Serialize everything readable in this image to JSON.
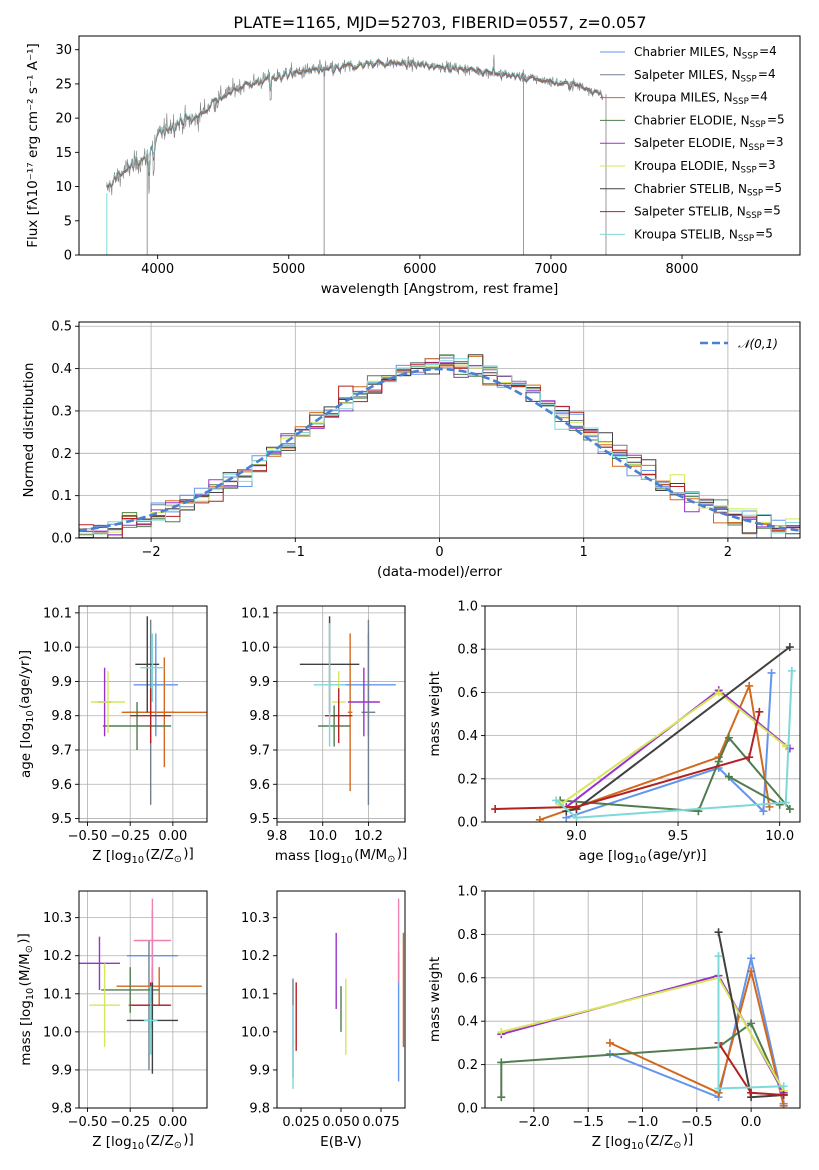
{
  "figure": {
    "title": "PLATE=1165, MJD=52703, FIBERID=0557, z=0.057"
  },
  "chart_data": [
    {
      "id": "spectrum",
      "type": "line",
      "title": "PLATE=1165, MJD=52703, FIBERID=0557, z=0.057",
      "xlabel": "wavelength [Angstrom, rest frame]",
      "ylabel": "Flux [fλ10⁻¹⁷ erg cm⁻² s⁻¹ A⁻¹]",
      "xlim": [
        3400,
        8900
      ],
      "ylim": [
        0,
        32
      ],
      "xticks": [
        4000,
        5000,
        6000,
        7000,
        8000
      ],
      "yticks": [
        0,
        5,
        10,
        15,
        20,
        25,
        30
      ],
      "grid": false,
      "legend_position": "top-right",
      "continuum": {
        "x": [
          3610,
          3700,
          3800,
          3900,
          4000,
          4100,
          4200,
          4300,
          4400,
          4600,
          4800,
          5000,
          5200,
          5400,
          5600,
          5800,
          6000,
          6200,
          6400,
          6600,
          6800,
          7000,
          7200,
          7400
        ],
        "y": [
          9.5,
          11.5,
          13,
          14,
          17.5,
          19,
          19.5,
          20,
          22,
          24.5,
          25.5,
          26.5,
          27,
          27.3,
          28,
          28,
          27.8,
          27.5,
          27,
          26.5,
          26,
          25.3,
          24.8,
          23.5
        ]
      },
      "series": [
        {
          "name": "Chabrier MILES, N$_{SSP}$=4",
          "color": "#6495ed"
        },
        {
          "name": "Salpeter MILES, N$_{SSP}$=4",
          "color": "#708090"
        },
        {
          "name": "Kroupa MILES, N$_{SSP}$=4",
          "color": "#d2691e"
        },
        {
          "name": "Chabrier ELODIE, N$_{SSP}$=5",
          "color": "#4f7d4f"
        },
        {
          "name": "Salpeter ELODIE, N$_{SSP}$=3",
          "color": "#9932cc"
        },
        {
          "name": "Kroupa ELODIE, N$_{SSP}$=3",
          "color": "#d7e65a"
        },
        {
          "name": "Chabrier STELIB, N$_{SSP}$=5",
          "color": "#404040"
        },
        {
          "name": "Salpeter STELIB, N$_{SSP}$=5",
          "color": "#b22222"
        },
        {
          "name": "Kroupa STELIB, N$_{SSP}$=5",
          "color": "#7fd8d8"
        }
      ],
      "data_color": "#808080"
    },
    {
      "id": "residuals",
      "type": "line",
      "xlabel": "(data-model)/error",
      "ylabel": "Normed distribution",
      "xlim": [
        -2.5,
        2.5
      ],
      "ylim": [
        0,
        0.51
      ],
      "xticks": [
        -2,
        -1,
        0,
        1,
        2
      ],
      "yticks": [
        0.0,
        0.1,
        0.2,
        0.3,
        0.4,
        0.5
      ],
      "grid": true,
      "legend_position": "top-right",
      "legend": "$\\mathcal{N}(0,1)$",
      "bin_width": 0.1,
      "series_colors": [
        "#6495ed",
        "#708090",
        "#d2691e",
        "#4f7d4f",
        "#9932cc",
        "#d7e65a",
        "#404040",
        "#b22222",
        "#7fd8d8"
      ]
    },
    {
      "id": "z-age",
      "type": "scatter",
      "xlabel": "Z [log$_{10}$(Z/Z$_\\odot$)]",
      "ylabel": "age  [log$_{10}$(age/yr)]",
      "xlim": [
        -0.55,
        0.2
      ],
      "ylim": [
        9.49,
        10.12
      ],
      "xticks": [
        -0.5,
        -0.25,
        0.0
      ],
      "yticks": [
        9.5,
        9.6,
        9.7,
        9.8,
        9.9,
        10.0,
        10.1
      ],
      "grid": true,
      "points": [
        {
          "color": "#6495ed",
          "x": -0.1,
          "xerr": 0.13,
          "y": 9.89,
          "yerr": 0.15
        },
        {
          "color": "#708090",
          "x": -0.13,
          "xerr": 0.14,
          "y": 9.81,
          "yerr": 0.27
        },
        {
          "color": "#d2691e",
          "x": -0.05,
          "xerr": 0.25,
          "y": 9.81,
          "yerr": 0.16
        },
        {
          "color": "#4f7d4f",
          "x": -0.21,
          "xerr": 0.2,
          "y": 9.77,
          "yerr": 0.07
        },
        {
          "color": "#9932cc",
          "x": -0.4,
          "xerr": 0.04,
          "y": 9.84,
          "yerr": 0.1
        },
        {
          "color": "#d7e65a",
          "x": -0.38,
          "xerr": 0.1,
          "y": 9.84,
          "yerr": 0.09
        },
        {
          "color": "#404040",
          "x": -0.15,
          "xerr": 0.07,
          "y": 9.95,
          "yerr": 0.14
        },
        {
          "color": "#b22222",
          "x": -0.13,
          "xerr": 0.12,
          "y": 9.8,
          "yerr": 0.08
        },
        {
          "color": "#7fd8d8",
          "x": -0.12,
          "xerr": 0.07,
          "y": 9.94,
          "yerr": 0.1
        }
      ]
    },
    {
      "id": "mass-age",
      "type": "scatter",
      "xlabel": "mass [log$_{10}$(M/M$_\\odot$)]",
      "ylabel": "",
      "xlim": [
        9.8,
        10.36
      ],
      "ylim": [
        9.49,
        10.12
      ],
      "xticks": [
        9.8,
        10.0,
        10.2
      ],
      "yticks": [
        9.5,
        9.6,
        9.7,
        9.8,
        9.9,
        10.0,
        10.1
      ],
      "grid": true,
      "points": [
        {
          "color": "#6495ed",
          "x": 10.2,
          "xerr": 0.12,
          "y": 9.89,
          "yerr": 0.15
        },
        {
          "color": "#708090",
          "x": 10.2,
          "xerr": 0.03,
          "y": 9.81,
          "yerr": 0.27
        },
        {
          "color": "#d2691e",
          "x": 10.12,
          "xerr": 0.01,
          "y": 9.81,
          "yerr": 0.23
        },
        {
          "color": "#4f7d4f",
          "x": 10.05,
          "xerr": 0.07,
          "y": 9.77,
          "yerr": 0.06
        },
        {
          "color": "#9932cc",
          "x": 10.18,
          "xerr": 0.07,
          "y": 9.84,
          "yerr": 0.1
        },
        {
          "color": "#d7e65a",
          "x": 10.07,
          "xerr": 0.03,
          "y": 9.84,
          "yerr": 0.09
        },
        {
          "color": "#404040",
          "x": 10.03,
          "xerr": 0.13,
          "y": 9.95,
          "yerr": 0.14
        },
        {
          "color": "#b22222",
          "x": 10.07,
          "xerr": 0.06,
          "y": 9.8,
          "yerr": 0.08
        },
        {
          "color": "#7fd8d8",
          "x": 10.03,
          "xerr": 0.07,
          "y": 9.89,
          "yerr": 0.18
        }
      ]
    },
    {
      "id": "age-weight",
      "type": "line",
      "xlabel": "age  [log$_{10}$(age/yr)]",
      "ylabel": "mass weight",
      "xlim": [
        8.55,
        10.1
      ],
      "ylim": [
        0,
        1.0
      ],
      "xticks": [
        9.0,
        9.5,
        10.0
      ],
      "yticks": [
        0.0,
        0.2,
        0.4,
        0.6,
        0.8,
        1.0
      ],
      "grid": true,
      "series": [
        {
          "color": "#6495ed",
          "x": [
            8.95,
            9.7,
            9.92,
            9.96
          ],
          "y": [
            0.02,
            0.25,
            0.05,
            0.69
          ]
        },
        {
          "color": "#d2691e",
          "x": [
            8.82,
            9.7,
            9.85,
            9.95
          ],
          "y": [
            0.01,
            0.3,
            0.63,
            0.07
          ]
        },
        {
          "color": "#4f7d4f",
          "x": [
            8.92,
            9.6,
            9.7,
            9.75,
            10.05
          ],
          "y": [
            0.1,
            0.05,
            0.28,
            0.39,
            0.06
          ]
        },
        {
          "color": "#4f7d4f",
          "x": [
            9.75,
            10.0
          ],
          "y": [
            0.21,
            0.08
          ]
        },
        {
          "color": "#9932cc",
          "x": [
            8.95,
            9.7,
            10.05
          ],
          "y": [
            0.07,
            0.61,
            0.34
          ]
        },
        {
          "color": "#d7e65a",
          "x": [
            8.92,
            9.7,
            10.03
          ],
          "y": [
            0.08,
            0.6,
            0.35
          ]
        },
        {
          "color": "#404040",
          "x": [
            8.95,
            9.0,
            10.05
          ],
          "y": [
            0.05,
            0.06,
            0.81
          ]
        },
        {
          "color": "#b22222",
          "x": [
            8.6,
            9.0,
            9.85,
            9.9
          ],
          "y": [
            0.06,
            0.07,
            0.3,
            0.51
          ]
        },
        {
          "color": "#7fd8d8",
          "x": [
            8.9,
            9.0,
            10.03,
            10.06
          ],
          "y": [
            0.1,
            0.02,
            0.09,
            0.7
          ]
        }
      ]
    },
    {
      "id": "z-mass",
      "type": "scatter",
      "xlabel": "Z [log$_{10}$(Z/Z$_\\odot$)]",
      "ylabel": "mass [log$_{10}$(M/M$_\\odot$)]",
      "xlim": [
        -0.55,
        0.2
      ],
      "ylim": [
        9.8,
        10.37
      ],
      "xticks": [
        -0.5,
        -0.25,
        0.0
      ],
      "yticks": [
        9.8,
        9.9,
        10.0,
        10.1,
        10.2,
        10.3
      ],
      "grid": true,
      "points": [
        {
          "color": "#6495ed",
          "x": -0.12,
          "xerr": 0.15,
          "y": 10.2,
          "yerr": 0.12
        },
        {
          "color": "#708090",
          "x": -0.14,
          "xerr": 0.12,
          "y": 10.07,
          "yerr": 0.17
        },
        {
          "color": "#d2691e",
          "x": -0.08,
          "xerr": 0.25,
          "y": 10.12,
          "yerr": 0.05
        },
        {
          "color": "#4f7d4f",
          "x": -0.25,
          "xerr": 0.17,
          "y": 10.11,
          "yerr": 0.06
        },
        {
          "color": "#9932cc",
          "x": -0.43,
          "xerr": 0.12,
          "y": 10.18,
          "yerr": 0.07
        },
        {
          "color": "#d7e65a",
          "x": -0.4,
          "xerr": 0.09,
          "y": 10.07,
          "yerr": 0.11
        },
        {
          "color": "#404040",
          "x": -0.12,
          "xerr": 0.15,
          "y": 10.03,
          "yerr": 0.14
        },
        {
          "color": "#b22222",
          "x": -0.13,
          "xerr": 0.12,
          "y": 10.07,
          "yerr": 0.06
        },
        {
          "color": "#7fd8d8",
          "x": -0.13,
          "xerr": 0.04,
          "y": 10.03,
          "yerr": 0.09
        },
        {
          "color": "#ee82b0",
          "x": -0.12,
          "xerr": 0.11,
          "y": 10.24,
          "yerr": 0.11
        }
      ]
    },
    {
      "id": "ebv-mass",
      "type": "scatter",
      "xlabel": "E(B-V)",
      "ylabel": "",
      "xlim": [
        0.01,
        0.09
      ],
      "ylim": [
        9.8,
        10.37
      ],
      "xticks": [
        0.025,
        0.05,
        0.075
      ],
      "yticks": [
        9.8,
        9.9,
        10.0,
        10.1,
        10.2,
        10.3
      ],
      "grid": false,
      "points": [
        {
          "color": "#708090",
          "x": 0.02,
          "y": 10.01,
          "yerr": 0.13
        },
        {
          "color": "#7fd8d8",
          "x": 0.02,
          "y": 9.96,
          "yerr": 0.11
        },
        {
          "color": "#b22222",
          "x": 0.022,
          "y": 10.04,
          "yerr": 0.09
        },
        {
          "color": "#9932cc",
          "x": 0.047,
          "y": 10.16,
          "yerr": 0.1
        },
        {
          "color": "#4f7d4f",
          "x": 0.05,
          "y": 10.06,
          "yerr": 0.06
        },
        {
          "color": "#d7e65a",
          "x": 0.053,
          "y": 10.04,
          "yerr": 0.1
        },
        {
          "color": "#6495ed",
          "x": 0.086,
          "y": 10.04,
          "yerr": 0.17
        },
        {
          "color": "#ee82b0",
          "x": 0.086,
          "y": 10.24,
          "yerr": 0.11
        },
        {
          "color": "#d2691e",
          "x": 0.089,
          "y": 10.11,
          "yerr": 0.15
        }
      ]
    },
    {
      "id": "z-weight",
      "type": "line",
      "xlabel": "Z [log$_{10}$(Z/Z$_\\odot$)]",
      "ylabel": "mass weight",
      "xlim": [
        -2.45,
        0.45
      ],
      "ylim": [
        0,
        1.0
      ],
      "xticks": [
        -2.0,
        -1.5,
        -1.0,
        -0.5,
        0.0
      ],
      "yticks": [
        0.0,
        0.2,
        0.4,
        0.6,
        0.8,
        1.0
      ],
      "grid": true,
      "series": [
        {
          "color": "#6495ed",
          "x": [
            -1.3,
            -0.3,
            0.0,
            0.3
          ],
          "y": [
            0.25,
            0.05,
            0.69,
            0.02
          ]
        },
        {
          "color": "#d2691e",
          "x": [
            -1.3,
            -0.3,
            0.0,
            0.3
          ],
          "y": [
            0.3,
            0.07,
            0.63,
            0.01
          ]
        },
        {
          "color": "#4f7d4f",
          "x": [
            -2.3,
            -2.3,
            -0.3,
            0.0,
            0.3
          ],
          "y": [
            0.05,
            0.21,
            0.28,
            0.39,
            0.06
          ]
        },
        {
          "color": "#9932cc",
          "x": [
            -2.3,
            -0.3,
            0.3
          ],
          "y": [
            0.34,
            0.61,
            0.07
          ]
        },
        {
          "color": "#d7e65a",
          "x": [
            -2.3,
            -0.3,
            0.3
          ],
          "y": [
            0.35,
            0.6,
            0.08
          ]
        },
        {
          "color": "#404040",
          "x": [
            -0.3,
            0.0,
            0.3
          ],
          "y": [
            0.81,
            0.05,
            0.06
          ]
        },
        {
          "color": "#b22222",
          "x": [
            -0.3,
            0.0,
            0.3
          ],
          "y": [
            0.3,
            0.07,
            0.06
          ]
        },
        {
          "color": "#7fd8d8",
          "x": [
            -0.3,
            -0.3,
            0.3
          ],
          "y": [
            0.7,
            0.09,
            0.1
          ]
        }
      ]
    }
  ]
}
